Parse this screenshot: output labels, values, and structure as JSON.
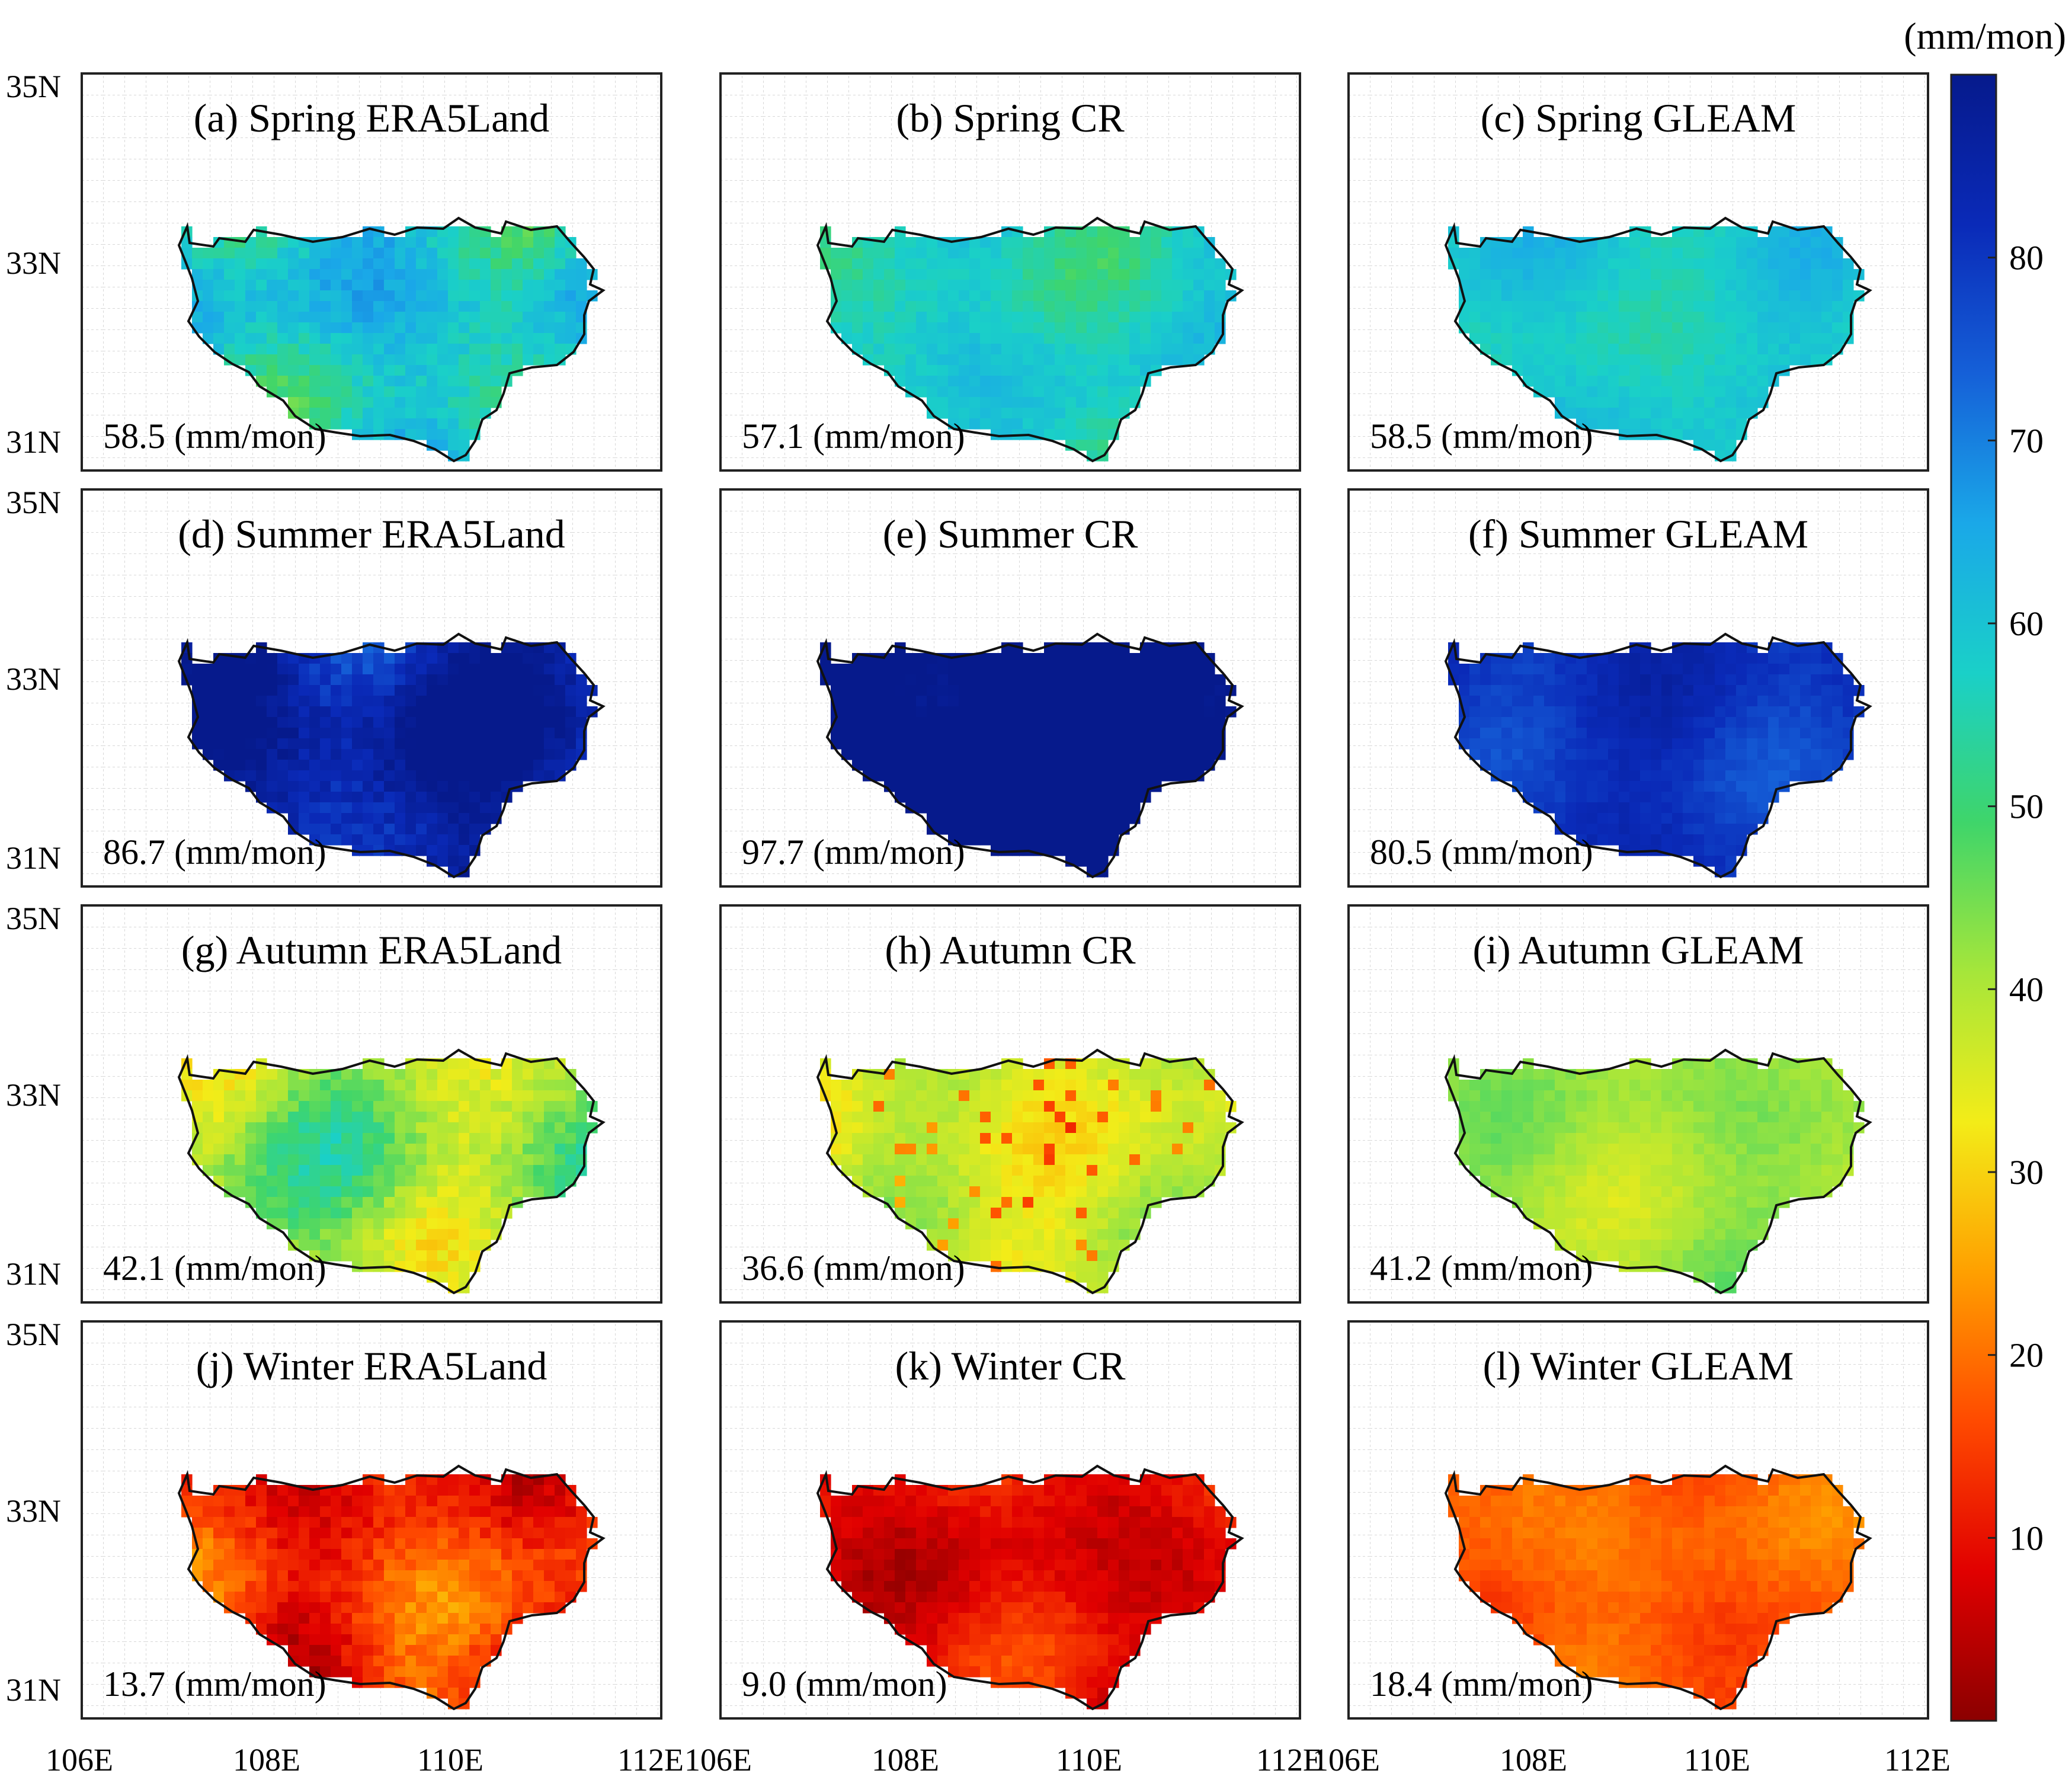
{
  "figure": {
    "colorbar": {
      "unit": "(mm/mon)",
      "ticks": [
        "80",
        "70",
        "60",
        "50",
        "40",
        "30",
        "20",
        "10"
      ],
      "tick_values": [
        80,
        70,
        60,
        50,
        40,
        30,
        20,
        10
      ],
      "range": [
        0,
        90
      ],
      "colormap": "jet-reversed",
      "colors": [
        "#8b0000",
        "#e10000",
        "#ff4a00",
        "#ffa000",
        "#f3ec18",
        "#a6e63a",
        "#3fd56a",
        "#1ad0c8",
        "#1aa8e8",
        "#1560d8",
        "#0a2ab8",
        "#061a8c"
      ]
    },
    "lat_labels": [
      "35N",
      "33N",
      "31N"
    ],
    "lon_labels": [
      "106E",
      "108E",
      "110E",
      "112E"
    ],
    "panels": [
      {
        "title": "(a) Spring ERA5Land",
        "mean": "58.5 (mm/mon)",
        "value": 58.5,
        "season": "Spring",
        "dataset": "ERA5Land"
      },
      {
        "title": "(b) Spring CR",
        "mean": "57.1 (mm/mon)",
        "value": 57.1,
        "season": "Spring",
        "dataset": "CR"
      },
      {
        "title": "(c) Spring GLEAM",
        "mean": "58.5 (mm/mon)",
        "value": 58.5,
        "season": "Spring",
        "dataset": "GLEAM"
      },
      {
        "title": "(d) Summer ERA5Land",
        "mean": "86.7 (mm/mon)",
        "value": 86.7,
        "season": "Summer",
        "dataset": "ERA5Land"
      },
      {
        "title": "(e) Summer CR",
        "mean": "97.7 (mm/mon)",
        "value": 97.7,
        "season": "Summer",
        "dataset": "CR"
      },
      {
        "title": "(f) Summer GLEAM",
        "mean": "80.5 (mm/mon)",
        "value": 80.5,
        "season": "Summer",
        "dataset": "GLEAM"
      },
      {
        "title": "(g) Autumn ERA5Land",
        "mean": "42.1 (mm/mon)",
        "value": 42.1,
        "season": "Autumn",
        "dataset": "ERA5Land"
      },
      {
        "title": "(h) Autumn CR",
        "mean": "36.6 (mm/mon)",
        "value": 36.6,
        "season": "Autumn",
        "dataset": "CR"
      },
      {
        "title": "(i) Autumn GLEAM",
        "mean": "41.2 (mm/mon)",
        "value": 41.2,
        "season": "Autumn",
        "dataset": "GLEAM"
      },
      {
        "title": "(j) Winter ERA5Land",
        "mean": "13.7 (mm/mon)",
        "value": 13.7,
        "season": "Winter",
        "dataset": "ERA5Land"
      },
      {
        "title": "(k) Winter CR",
        "mean": "9.0 (mm/mon)",
        "value": 9.0,
        "season": "Winter",
        "dataset": "CR"
      },
      {
        "title": "(l) Winter GLEAM",
        "mean": "18.4 (mm/mon)",
        "value": 18.4,
        "season": "Winter",
        "dataset": "GLEAM"
      }
    ]
  }
}
